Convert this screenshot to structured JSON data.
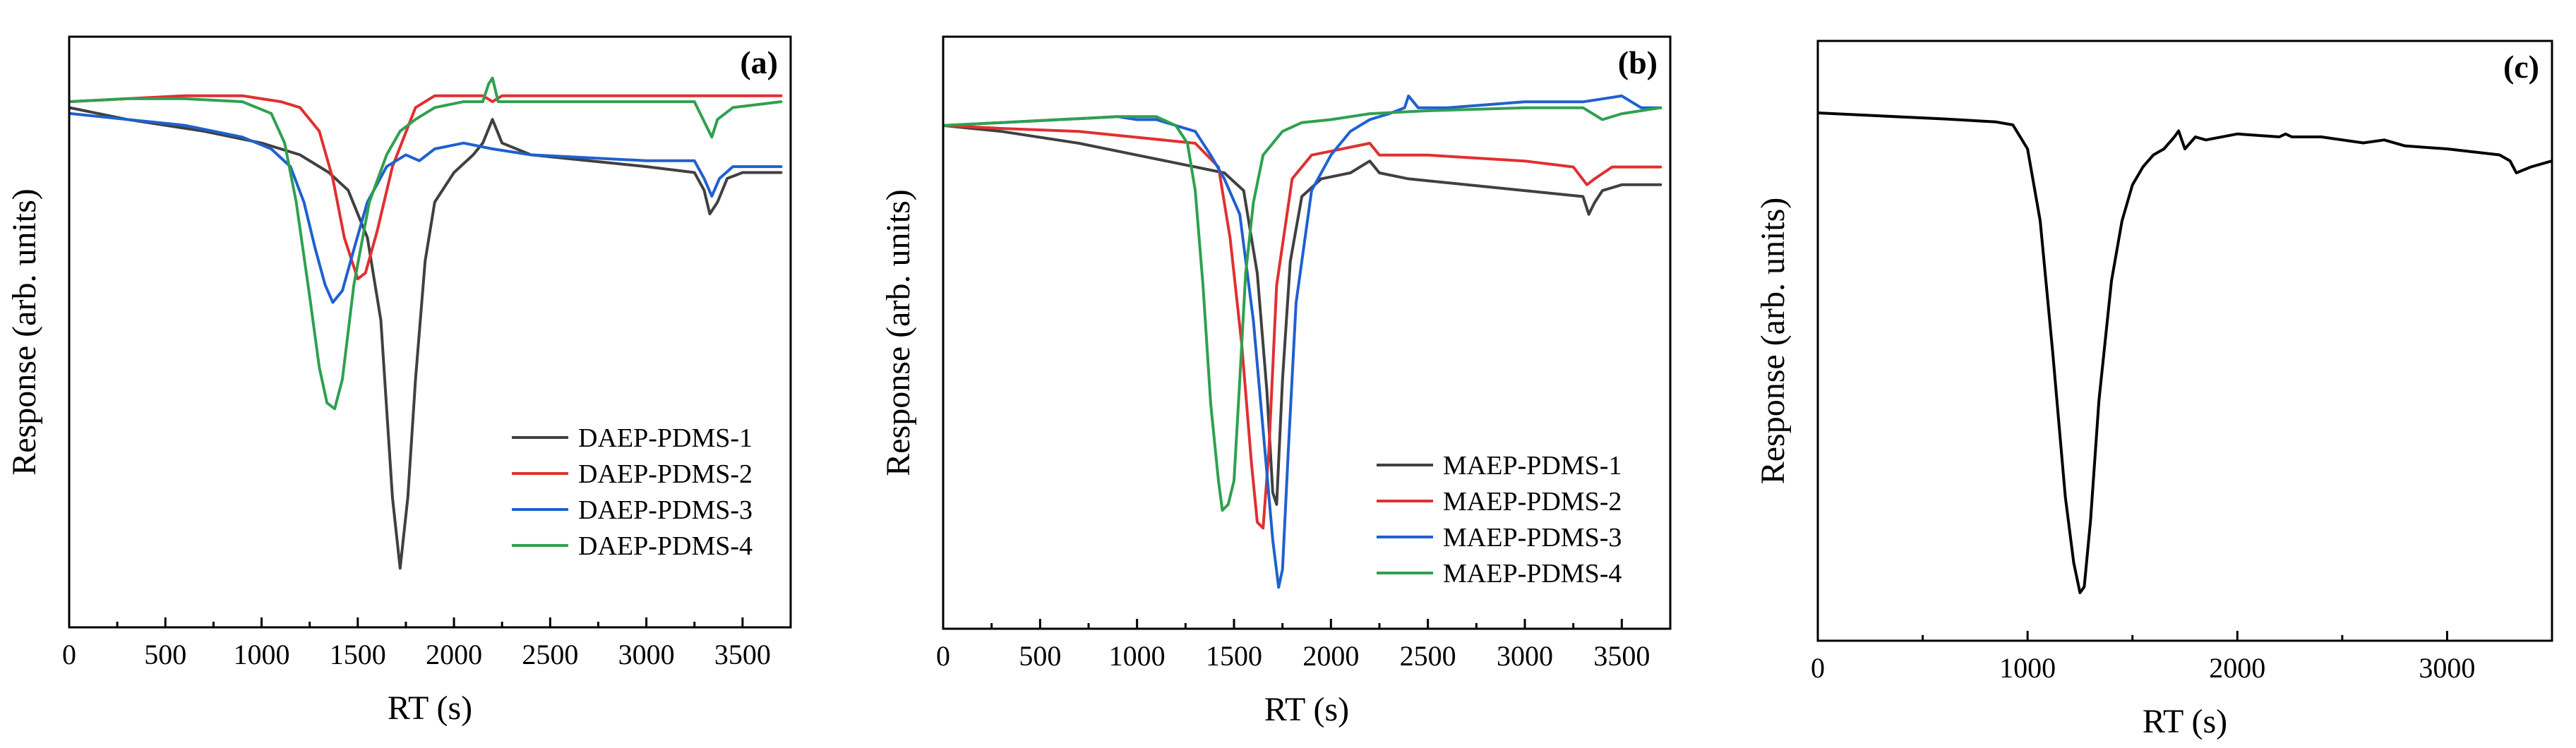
{
  "chart_data": [
    {
      "panel": "(a)",
      "type": "line",
      "title": "",
      "xlabel": "RT (s)",
      "ylabel": "Response (arb. units)",
      "xlim": [
        0,
        3750
      ],
      "ylim": [
        0,
        100
      ],
      "x_ticks": [
        0,
        500,
        1000,
        1500,
        2000,
        2500,
        3000,
        3500
      ],
      "y_ticks_visible": false,
      "legend_position": "bottom-right",
      "series": [
        {
          "name": "DAEP-PDMS-1",
          "color": "#404040",
          "x": [
            0,
            300,
            700,
            1000,
            1200,
            1350,
            1450,
            1550,
            1620,
            1680,
            1720,
            1760,
            1800,
            1850,
            1900,
            2000,
            2100,
            2150,
            2200,
            2250,
            2400,
            2700,
            3000,
            3250,
            3300,
            3330,
            3370,
            3420,
            3500,
            3700
          ],
          "y": [
            88,
            86,
            84,
            82,
            80,
            77,
            74,
            66,
            52,
            22,
            10,
            22,
            42,
            62,
            72,
            77,
            80,
            82,
            86,
            82,
            80,
            79,
            78,
            77,
            74,
            70,
            72,
            76,
            77,
            77
          ]
        },
        {
          "name": "DAEP-PDMS-2",
          "color": "#e03030",
          "x": [
            0,
            300,
            600,
            900,
            1100,
            1200,
            1300,
            1370,
            1430,
            1500,
            1540,
            1600,
            1680,
            1800,
            1900,
            2000,
            2150,
            2200,
            2250,
            2500,
            3000,
            3350,
            3500,
            3700
          ],
          "y": [
            89,
            89.5,
            90,
            90,
            89,
            88,
            84,
            76,
            66,
            59,
            60,
            67,
            78,
            88,
            90,
            90,
            90,
            89,
            90,
            90,
            90,
            90,
            90,
            90
          ]
        },
        {
          "name": "DAEP-PDMS-3",
          "color": "#2060d0",
          "x": [
            0,
            300,
            600,
            900,
            1050,
            1150,
            1220,
            1280,
            1330,
            1370,
            1420,
            1480,
            1550,
            1650,
            1750,
            1820,
            1900,
            2050,
            2200,
            2400,
            3000,
            3250,
            3300,
            3340,
            3380,
            3450,
            3700
          ],
          "y": [
            87,
            86,
            85,
            83,
            81,
            78,
            72,
            64,
            58,
            55,
            57,
            64,
            72,
            78,
            80,
            79,
            81,
            82,
            81,
            80,
            79,
            79,
            76,
            73,
            76,
            78,
            78
          ]
        },
        {
          "name": "DAEP-PDMS-4",
          "color": "#30a050",
          "x": [
            0,
            300,
            600,
            900,
            1050,
            1120,
            1180,
            1250,
            1300,
            1340,
            1380,
            1420,
            1480,
            1560,
            1650,
            1720,
            1800,
            1900,
            2050,
            2150,
            2180,
            2200,
            2230,
            2300,
            2600,
            3000,
            3250,
            3310,
            3340,
            3370,
            3450,
            3700
          ],
          "y": [
            89,
            89.5,
            89.5,
            89,
            87,
            82,
            72,
            56,
            44,
            38,
            37,
            42,
            58,
            72,
            80,
            84,
            86,
            88,
            89,
            89,
            92,
            93,
            89,
            89,
            89,
            89,
            89,
            85,
            83,
            86,
            88,
            89
          ]
        }
      ]
    },
    {
      "panel": "(b)",
      "type": "line",
      "title": "",
      "xlabel": "RT (s)",
      "ylabel": "Response (arb. units)",
      "xlim": [
        0,
        3750
      ],
      "ylim": [
        0,
        100
      ],
      "x_ticks": [
        0,
        500,
        1000,
        1500,
        2000,
        2500,
        3000,
        3500
      ],
      "y_ticks_visible": false,
      "legend_position": "bottom-right",
      "series": [
        {
          "name": "MAEP-PDMS-1",
          "color": "#404040",
          "x": [
            0,
            300,
            700,
            1000,
            1300,
            1450,
            1550,
            1620,
            1670,
            1700,
            1720,
            1750,
            1790,
            1850,
            1950,
            2100,
            2200,
            2250,
            2400,
            2700,
            3000,
            3300,
            3330,
            3360,
            3400,
            3500,
            3700
          ],
          "y": [
            85,
            84,
            82,
            80,
            78,
            77,
            74,
            60,
            40,
            23,
            21,
            42,
            62,
            73,
            76,
            77,
            79,
            77,
            76,
            75,
            74,
            73,
            70,
            72,
            74,
            75,
            75
          ]
        },
        {
          "name": "MAEP-PDMS-2",
          "color": "#e03030",
          "x": [
            0,
            300,
            700,
            1000,
            1300,
            1420,
            1480,
            1540,
            1590,
            1620,
            1650,
            1680,
            1720,
            1800,
            1900,
            2050,
            2200,
            2250,
            2500,
            3000,
            3250,
            3320,
            3360,
            3450,
            3700
          ],
          "y": [
            85,
            84.5,
            84,
            83,
            82,
            78,
            66,
            48,
            28,
            18,
            17,
            30,
            58,
            76,
            80,
            81,
            82,
            80,
            80,
            79,
            78,
            75,
            76,
            78,
            78
          ]
        },
        {
          "name": "MAEP-PDMS-3",
          "color": "#2060d0",
          "x": [
            0,
            300,
            600,
            900,
            1000,
            1100,
            1200,
            1300,
            1380,
            1450,
            1530,
            1600,
            1660,
            1700,
            1730,
            1750,
            1780,
            1820,
            1900,
            2000,
            2100,
            2200,
            2300,
            2380,
            2400,
            2450,
            2600,
            3000,
            3300,
            3500,
            3600,
            3700
          ],
          "y": [
            85,
            85.5,
            86,
            86.5,
            86,
            86,
            85,
            84,
            80,
            76,
            70,
            52,
            30,
            15,
            7,
            10,
            30,
            55,
            74,
            80,
            84,
            86,
            87,
            88,
            90,
            88,
            88,
            89,
            89,
            90,
            88,
            88
          ]
        },
        {
          "name": "MAEP-PDMS-4",
          "color": "#30a050",
          "x": [
            0,
            300,
            600,
            900,
            1100,
            1200,
            1260,
            1300,
            1340,
            1380,
            1420,
            1440,
            1470,
            1500,
            1530,
            1560,
            1600,
            1650,
            1750,
            1850,
            2000,
            2200,
            2500,
            3000,
            3300,
            3400,
            3500,
            3700
          ],
          "y": [
            85,
            85.5,
            86,
            86.5,
            86.5,
            85,
            82,
            74,
            58,
            38,
            25,
            20,
            21,
            25,
            42,
            60,
            72,
            80,
            84,
            85.5,
            86,
            87,
            87.5,
            88,
            88,
            86,
            87,
            88
          ]
        }
      ]
    },
    {
      "panel": "(c)",
      "type": "line",
      "title": "",
      "xlabel": "RT (s)",
      "ylabel": "Response (arb. units)",
      "xlim": [
        0,
        3500
      ],
      "ylim": [
        0,
        100
      ],
      "x_ticks": [
        0,
        1000,
        2000,
        3000
      ],
      "y_ticks_visible": false,
      "legend_position": "none",
      "series": [
        {
          "name": "",
          "color": "#000000",
          "x": [
            0,
            300,
            600,
            850,
            930,
            1000,
            1060,
            1120,
            1180,
            1220,
            1250,
            1270,
            1300,
            1340,
            1400,
            1450,
            1500,
            1550,
            1600,
            1650,
            1700,
            1720,
            1750,
            1800,
            1850,
            2000,
            2200,
            2230,
            2260,
            2400,
            2600,
            2700,
            2800,
            3000,
            3250,
            3300,
            3330,
            3400,
            3500
          ],
          "y": [
            88,
            87.5,
            87,
            86.5,
            86,
            82,
            70,
            48,
            24,
            13,
            8,
            9,
            20,
            40,
            60,
            70,
            76,
            79,
            81,
            82,
            84,
            85,
            82,
            84,
            83.5,
            84.5,
            84,
            84.5,
            84,
            84,
            83,
            83.5,
            82.5,
            82,
            81,
            80,
            78,
            79,
            80
          ]
        }
      ]
    }
  ]
}
